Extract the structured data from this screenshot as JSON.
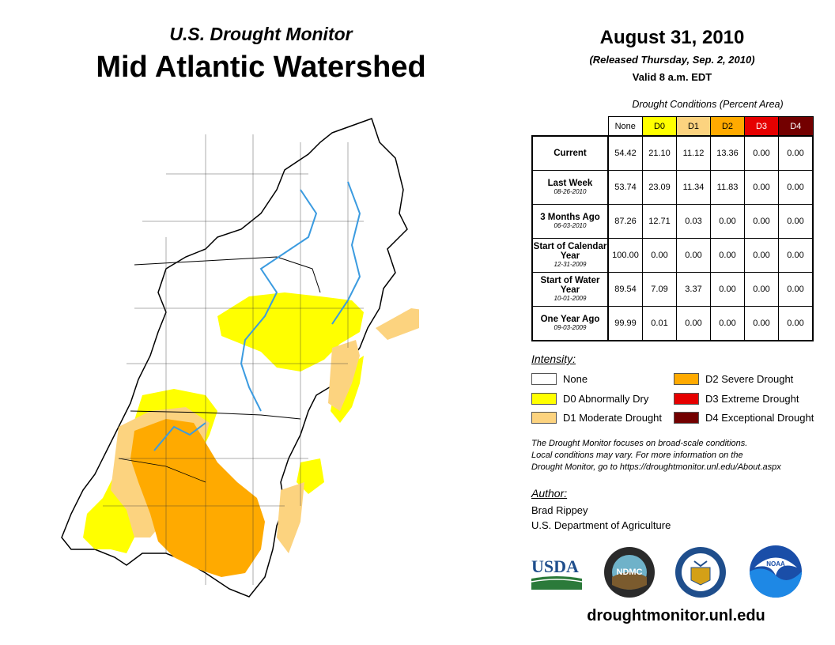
{
  "header": {
    "subtitle": "U.S. Drought Monitor",
    "title": "Mid Atlantic Watershed",
    "date": "August 31, 2010",
    "released": "(Released Thursday, Sep. 2, 2010)",
    "valid": "Valid 8 a.m. EDT"
  },
  "table": {
    "title": "Drought Conditions (Percent Area)",
    "columns": [
      "None",
      "D0",
      "D1",
      "D2",
      "D3",
      "D4"
    ],
    "column_colors": [
      "#ffffff",
      "#ffff00",
      "#fcd37f",
      "#ffaa00",
      "#e60000",
      "#730000"
    ],
    "rows": [
      {
        "label": "Current",
        "date": "",
        "values": [
          "54.42",
          "21.10",
          "11.12",
          "13.36",
          "0.00",
          "0.00"
        ]
      },
      {
        "label": "Last Week",
        "date": "08-26-2010",
        "values": [
          "53.74",
          "23.09",
          "11.34",
          "11.83",
          "0.00",
          "0.00"
        ]
      },
      {
        "label": "3 Months Ago",
        "date": "06-03-2010",
        "values": [
          "87.26",
          "12.71",
          "0.03",
          "0.00",
          "0.00",
          "0.00"
        ]
      },
      {
        "label": "Start of Calendar Year",
        "date": "12-31-2009",
        "values": [
          "100.00",
          "0.00",
          "0.00",
          "0.00",
          "0.00",
          "0.00"
        ]
      },
      {
        "label": "Start of Water Year",
        "date": "10-01-2009",
        "values": [
          "89.54",
          "7.09",
          "3.37",
          "0.00",
          "0.00",
          "0.00"
        ]
      },
      {
        "label": "One Year Ago",
        "date": "09-03-2009",
        "values": [
          "99.99",
          "0.01",
          "0.00",
          "0.00",
          "0.00",
          "0.00"
        ]
      }
    ]
  },
  "legend": {
    "title": "Intensity:",
    "items": [
      {
        "label": "None",
        "color": "#ffffff"
      },
      {
        "label": "D0 Abnormally Dry",
        "color": "#ffff00"
      },
      {
        "label": "D1 Moderate Drought",
        "color": "#fcd37f"
      },
      {
        "label": "D2 Severe Drought",
        "color": "#ffaa00"
      },
      {
        "label": "D3 Extreme Drought",
        "color": "#e60000"
      },
      {
        "label": "D4 Exceptional Drought",
        "color": "#730000"
      }
    ]
  },
  "note": {
    "line1": "The Drought Monitor focuses on broad-scale conditions.",
    "line2": "Local conditions may vary. For more information on the",
    "line3": "Drought Monitor, go to https://droughtmonitor.unl.edu/About.aspx"
  },
  "author": {
    "label": "Author:",
    "name": "Brad Rippey",
    "org": "U.S. Department of Agriculture"
  },
  "logos": {
    "usda": "USDA",
    "ndmc": "NDMC",
    "noaa": "NOAA"
  },
  "url": "droughtmonitor.unl.edu"
}
